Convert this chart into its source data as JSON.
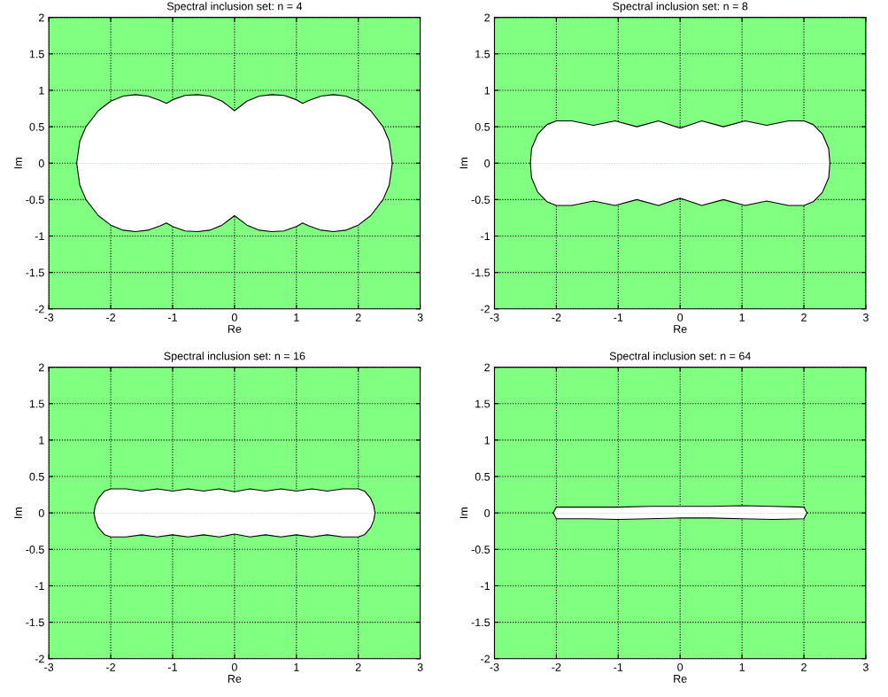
{
  "chart_data": [
    {
      "type": "area",
      "title": "Spectral inclusion set: n = 4",
      "xlabel": "Re",
      "ylabel": "Im",
      "xlim": [
        -3,
        3
      ],
      "xticks": [
        -3,
        -2,
        -1,
        0,
        1,
        2,
        3
      ],
      "ylim": [
        -2,
        2
      ],
      "yticks": [
        -2,
        -1.5,
        -1,
        -0.5,
        0,
        0.5,
        1,
        1.5,
        2
      ],
      "grid": true,
      "bands": [
        {
          "axis": "y",
          "from": -2,
          "to": 2,
          "color": "#80ff80"
        }
      ],
      "x": [
        -2.55,
        -2.5,
        -2.4,
        -2.2,
        -2.0,
        -1.8,
        -1.6,
        -1.4,
        -1.2,
        -1.1,
        -1.0,
        -0.8,
        -0.6,
        -0.4,
        -0.2,
        0,
        0.2,
        0.4,
        0.6,
        0.8,
        1.0,
        1.1,
        1.2,
        1.4,
        1.6,
        1.8,
        2.0,
        2.2,
        2.4,
        2.5,
        2.55
      ],
      "series": [
        {
          "color": "#ffffff",
          "values": [
            0,
            0.3,
            0.5,
            0.72,
            0.85,
            0.92,
            0.94,
            0.92,
            0.86,
            0.82,
            0.87,
            0.93,
            0.94,
            0.92,
            0.85,
            0.72,
            0.85,
            0.92,
            0.94,
            0.93,
            0.87,
            0.82,
            0.86,
            0.92,
            0.94,
            0.92,
            0.85,
            0.72,
            0.5,
            0.3,
            0
          ]
        },
        {
          "color": "#ffffff",
          "values": [
            0,
            -0.3,
            -0.5,
            -0.72,
            -0.85,
            -0.92,
            -0.94,
            -0.92,
            -0.86,
            -0.82,
            -0.87,
            -0.93,
            -0.94,
            -0.92,
            -0.85,
            -0.72,
            -0.85,
            -0.92,
            -0.94,
            -0.93,
            -0.87,
            -0.82,
            -0.86,
            -0.92,
            -0.94,
            -0.92,
            -0.85,
            -0.72,
            -0.5,
            -0.3,
            0
          ]
        }
      ]
    },
    {
      "type": "area",
      "title": "Spectral inclusion set: n = 8",
      "xlabel": "Re",
      "ylabel": "Im",
      "xlim": [
        -3,
        3
      ],
      "xticks": [
        -3,
        -2,
        -1,
        0,
        1,
        2,
        3
      ],
      "ylim": [
        -2,
        2
      ],
      "yticks": [
        -2,
        -1.5,
        -1,
        -0.5,
        0,
        0.5,
        1,
        1.5,
        2
      ],
      "grid": true,
      "bands": [
        {
          "axis": "y",
          "from": -2,
          "to": 2,
          "color": "#80ff80"
        }
      ],
      "x": [
        -2.42,
        -2.4,
        -2.3,
        -2.15,
        -2.0,
        -1.75,
        -1.4,
        -1.05,
        -0.7,
        -0.35,
        0,
        0.35,
        0.7,
        1.05,
        1.4,
        1.75,
        2.0,
        2.15,
        2.3,
        2.4,
        2.42
      ],
      "series": [
        {
          "color": "#ffffff",
          "values": [
            0,
            0.2,
            0.4,
            0.53,
            0.58,
            0.58,
            0.52,
            0.58,
            0.5,
            0.58,
            0.48,
            0.58,
            0.5,
            0.58,
            0.52,
            0.58,
            0.58,
            0.53,
            0.4,
            0.2,
            0
          ]
        },
        {
          "color": "#ffffff",
          "values": [
            0,
            -0.2,
            -0.4,
            -0.53,
            -0.58,
            -0.58,
            -0.52,
            -0.58,
            -0.5,
            -0.58,
            -0.48,
            -0.58,
            -0.5,
            -0.58,
            -0.52,
            -0.58,
            -0.58,
            -0.53,
            -0.4,
            -0.2,
            0
          ]
        }
      ]
    },
    {
      "type": "area",
      "title": "Spectral inclusion set: n = 16",
      "xlabel": "Re",
      "ylabel": "Im",
      "xlim": [
        -3,
        3
      ],
      "xticks": [
        -3,
        -2,
        -1,
        0,
        1,
        2,
        3
      ],
      "ylim": [
        -2,
        2
      ],
      "yticks": [
        -2,
        -1.5,
        -1,
        -0.5,
        0,
        0.5,
        1,
        1.5,
        2
      ],
      "grid": true,
      "bands": [
        {
          "axis": "y",
          "from": -2,
          "to": 2,
          "color": "#80ff80"
        }
      ],
      "x": [
        -2.27,
        -2.25,
        -2.2,
        -2.1,
        -2.0,
        -1.75,
        -1.5,
        -1.25,
        -1.0,
        -0.75,
        -0.5,
        -0.25,
        0,
        0.25,
        0.5,
        0.75,
        1.0,
        1.25,
        1.5,
        1.75,
        2.0,
        2.1,
        2.2,
        2.25,
        2.27
      ],
      "series": [
        {
          "color": "#ffffff",
          "values": [
            0,
            0.1,
            0.2,
            0.3,
            0.33,
            0.33,
            0.3,
            0.33,
            0.3,
            0.33,
            0.3,
            0.33,
            0.29,
            0.33,
            0.3,
            0.33,
            0.3,
            0.33,
            0.3,
            0.33,
            0.33,
            0.3,
            0.2,
            0.1,
            0
          ]
        },
        {
          "color": "#ffffff",
          "values": [
            0,
            -0.1,
            -0.2,
            -0.3,
            -0.33,
            -0.33,
            -0.3,
            -0.33,
            -0.3,
            -0.33,
            -0.3,
            -0.33,
            -0.29,
            -0.33,
            -0.3,
            -0.33,
            -0.3,
            -0.33,
            -0.3,
            -0.33,
            -0.33,
            -0.3,
            -0.2,
            -0.1,
            0
          ]
        }
      ]
    },
    {
      "type": "area",
      "title": "Spectral inclusion set: n = 64",
      "xlabel": "Re",
      "ylabel": "Im",
      "xlim": [
        -3,
        3
      ],
      "xticks": [
        -3,
        -2,
        -1,
        0,
        1,
        2,
        3
      ],
      "ylim": [
        -2,
        2
      ],
      "yticks": [
        -2,
        -1.5,
        -1,
        -0.5,
        0,
        0.5,
        1,
        1.5,
        2
      ],
      "grid": true,
      "bands": [
        {
          "axis": "y",
          "from": -2,
          "to": 2,
          "color": "#80ff80"
        }
      ],
      "x": [
        -2.05,
        -2.0,
        -1.5,
        -1.0,
        -0.5,
        0,
        0.5,
        1.0,
        1.5,
        2.0,
        2.05
      ],
      "series": [
        {
          "color": "#ffffff",
          "values": [
            0,
            0.08,
            0.08,
            0.08,
            0.09,
            0.09,
            0.09,
            0.1,
            0.09,
            0.08,
            0
          ]
        },
        {
          "color": "#ffffff",
          "values": [
            0,
            -0.08,
            -0.08,
            -0.09,
            -0.08,
            -0.07,
            -0.07,
            -0.08,
            -0.09,
            -0.08,
            0
          ]
        }
      ]
    }
  ]
}
